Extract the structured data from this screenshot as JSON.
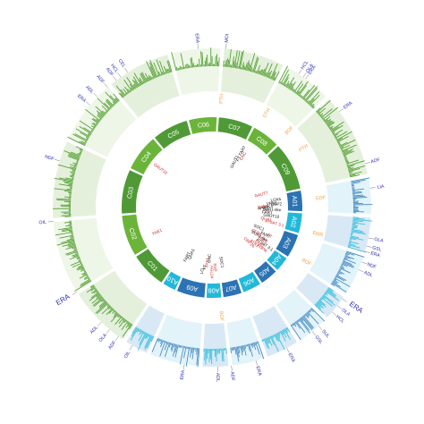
{
  "chromosomes": [
    {
      "name": "C01",
      "size": 49,
      "color": "#4f9a36"
    },
    {
      "name": "C02",
      "size": 56,
      "color": "#6bb43a"
    },
    {
      "name": "C03",
      "size": 60,
      "color": "#4f9a36"
    },
    {
      "name": "C04",
      "size": 50,
      "color": "#6bb43a"
    },
    {
      "name": "C05",
      "size": 49,
      "color": "#4f9a36"
    },
    {
      "name": "C06",
      "size": 38,
      "color": "#6bb43a"
    },
    {
      "name": "C07",
      "size": 47,
      "color": "#4f9a36"
    },
    {
      "name": "C08",
      "size": 38,
      "color": "#6bb43a"
    },
    {
      "name": "C09",
      "size": 65,
      "color": "#4f9a36"
    },
    {
      "name": "A01",
      "size": 28,
      "color": "#2b73b4"
    },
    {
      "name": "A02",
      "size": 27,
      "color": "#22b8d8"
    },
    {
      "name": "A03",
      "size": 32,
      "color": "#2b73b4"
    },
    {
      "name": "A04",
      "size": 20,
      "color": "#22b8d8"
    },
    {
      "name": "A05",
      "size": 24,
      "color": "#2b73b4"
    },
    {
      "name": "A06",
      "size": 25,
      "color": "#22b8d8"
    },
    {
      "name": "A07",
      "size": 25,
      "color": "#2b73b4"
    },
    {
      "name": "A08",
      "size": 20,
      "color": "#22b8d8"
    },
    {
      "name": "A09",
      "size": 38,
      "color": "#2b73b4"
    },
    {
      "name": "A10",
      "size": 18,
      "color": "#22b8d8"
    }
  ],
  "outer_labels": [
    {
      "text": "MOI",
      "angle": 5,
      "kind": "trait"
    },
    {
      "text": "ERA",
      "angle": -5,
      "kind": "trait"
    },
    {
      "text": "HCL",
      "angle": -35,
      "kind": "trait"
    },
    {
      "text": "CEL",
      "angle": -32,
      "kind": "trait"
    },
    {
      "text": "ADF",
      "angle": -37,
      "kind": "trait"
    },
    {
      "text": "ADF",
      "angle": -41,
      "kind": "trait"
    },
    {
      "text": "ADL",
      "angle": -46,
      "kind": "trait"
    },
    {
      "text": "ERA",
      "angle": -50,
      "kind": "trait"
    },
    {
      "text": "NDF",
      "angle": -73,
      "kind": "trait"
    },
    {
      "text": "OIL",
      "angle": -95,
      "kind": "trait"
    },
    {
      "text": "ERA",
      "angle": -122,
      "kind": "trait-big"
    },
    {
      "text": "ADL",
      "angle": -136,
      "kind": "trait"
    },
    {
      "text": "OLA",
      "angle": -140,
      "kind": "trait"
    },
    {
      "text": "ADF",
      "angle": -144,
      "kind": "trait"
    },
    {
      "text": "OIL",
      "angle": -150,
      "kind": "trait"
    },
    {
      "text": "ERA",
      "angle": -170,
      "kind": "trait"
    },
    {
      "text": "ADL",
      "angle": -182,
      "kind": "trait"
    },
    {
      "text": "ADF",
      "angle": -187,
      "kind": "trait"
    },
    {
      "text": "ERA",
      "angle": 164,
      "kind": "trait"
    },
    {
      "text": "ERA",
      "angle": 152,
      "kind": "trait"
    },
    {
      "text": "GSL",
      "angle": 141,
      "kind": "trait"
    },
    {
      "text": "SUL",
      "angle": 138,
      "kind": "trait"
    },
    {
      "text": "HCL",
      "angle": 131,
      "kind": "trait"
    },
    {
      "text": "OLA",
      "angle": 128,
      "kind": "trait"
    },
    {
      "text": "ERA",
      "angle": 125,
      "kind": "trait-big"
    },
    {
      "text": "ADL",
      "angle": 113,
      "kind": "trait"
    },
    {
      "text": "NDF",
      "angle": 110,
      "kind": "trait"
    },
    {
      "text": "ERA",
      "angle": 106,
      "kind": "trait"
    },
    {
      "text": "OLA",
      "angle": 101,
      "kind": "trait"
    },
    {
      "text": "GSL",
      "angle": 104,
      "kind": "trait"
    },
    {
      "text": "LIA",
      "angle": 83,
      "kind": "trait"
    },
    {
      "text": "ADF",
      "angle": 74,
      "kind": "trait"
    },
    {
      "text": "ERA",
      "angle": 53,
      "kind": "trait"
    },
    {
      "text": "ERA",
      "angle": 36,
      "kind": "trait"
    },
    {
      "text": "HCL",
      "angle": 33,
      "kind": "trait"
    },
    {
      "text": "OLA",
      "angle": 35,
      "kind": "trait"
    }
  ],
  "qtl_labels": [
    {
      "text": "PTH",
      "angle": 5
    },
    {
      "text": "DTH",
      "angle": 30
    },
    {
      "text": "BOF",
      "angle": 45
    },
    {
      "text": "PTH",
      "angle": 57
    },
    {
      "text": "EDF",
      "angle": 85
    },
    {
      "text": "EMR",
      "angle": 104
    },
    {
      "text": "BOF",
      "angle": 120
    },
    {
      "text": "BOF",
      "angle": 175
    }
  ],
  "gene_labels": [
    {
      "text": "GAUT10",
      "angle": -53,
      "red": true
    },
    {
      "text": "FAE1",
      "angle": -114,
      "red": true
    },
    {
      "text": "FAR7",
      "angle": -153,
      "red": false
    },
    {
      "text": "QUA1",
      "angle": -156,
      "red": false
    },
    {
      "text": "LO",
      "angle": -171,
      "red": false
    },
    {
      "text": "FT",
      "angle": -173,
      "red": false
    },
    {
      "text": "TPS1",
      "angle": -175,
      "red": true
    },
    {
      "text": "GNC",
      "angle": 183,
      "red": false
    },
    {
      "text": "AGL24",
      "angle": 180,
      "red": true
    },
    {
      "text": "SVP",
      "angle": 177,
      "red": true
    },
    {
      "text": "SOC1",
      "angle": 170,
      "red": false
    },
    {
      "text": "GAUT1",
      "angle": 26,
      "red": false
    },
    {
      "text": "FAR7",
      "angle": 28,
      "red": false
    },
    {
      "text": "GNC",
      "angle": 31,
      "red": true
    },
    {
      "text": "FT",
      "angle": 28.5,
      "red": false
    },
    {
      "text": "GAUT7",
      "angle": 75,
      "red": true
    },
    {
      "text": "LOX5",
      "angle": 83,
      "red": false
    },
    {
      "text": "VRN1",
      "angle": 86,
      "red": false
    },
    {
      "text": "APK4",
      "angle": 89,
      "red": false
    },
    {
      "text": "APK3",
      "angle": 91,
      "red": false
    },
    {
      "text": "OBP2",
      "angle": 87,
      "red": false
    },
    {
      "text": "SUR1-like",
      "angle": 92,
      "red": false
    },
    {
      "text": "FAR1",
      "angle": 95,
      "red": false
    },
    {
      "text": "DPA3",
      "angle": 89.5,
      "red": true
    },
    {
      "text": "ATSAT 3.1",
      "angle": 104,
      "red": true
    },
    {
      "text": "GAUT10",
      "angle": 98,
      "red": false
    },
    {
      "text": "QUA1",
      "angle": 102,
      "red": true
    },
    {
      "text": "SOC1",
      "angle": 113,
      "red": false
    },
    {
      "text": "FT",
      "angle": 116,
      "red": true
    },
    {
      "text": "FAR7",
      "angle": 117,
      "red": false
    },
    {
      "text": "SUR1-like",
      "angle": 121,
      "red": false
    },
    {
      "text": "CER4",
      "angle": 119,
      "red": true
    },
    {
      "text": "ATSAT 3.1",
      "angle": 125,
      "red": false
    },
    {
      "text": "FAR1",
      "angle": 127,
      "red": true
    },
    {
      "text": "ATR1",
      "angle": 130,
      "red": true
    },
    {
      "text": "OBP2b",
      "angle": 133,
      "red": true
    },
    {
      "text": "ADPR",
      "angle": 129,
      "red": true
    },
    {
      "text": "FAE1",
      "angle": 122,
      "red": true
    }
  ]
}
